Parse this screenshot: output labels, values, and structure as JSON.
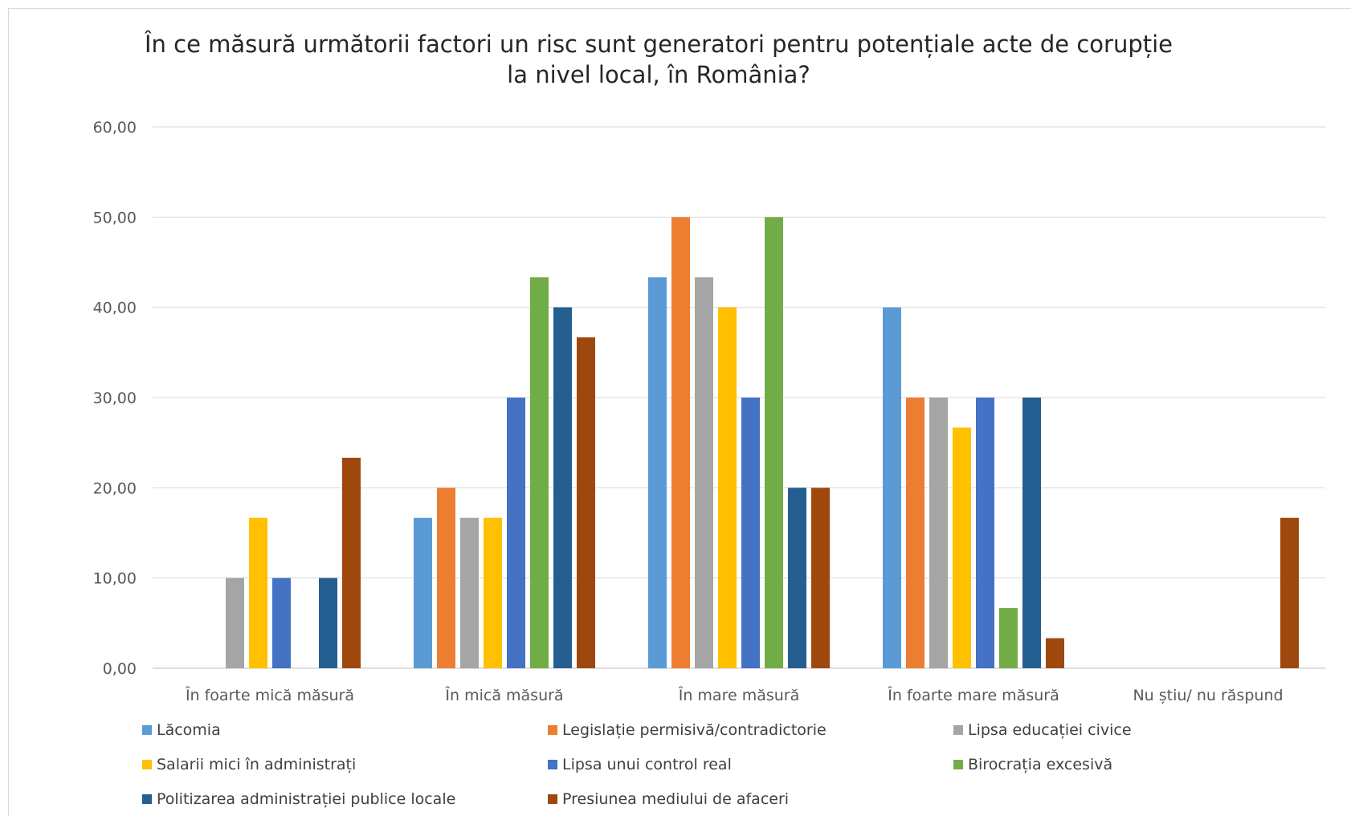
{
  "chart_data": {
    "type": "bar",
    "title_lines": [
      "În ce măsură următorii factori un risc sunt generatori pentru potențiale acte de corupție",
      "la nivel local, în România?"
    ],
    "categories": [
      "În foarte mică măsură",
      "În mică măsură",
      "În mare măsură",
      "În foarte mare măsură",
      "Nu știu/ nu răspund"
    ],
    "ylim": [
      0,
      60
    ],
    "yticks": [
      "0,00",
      "10,00",
      "20,00",
      "30,00",
      "40,00",
      "50,00",
      "60,00"
    ],
    "ytick_values": [
      0,
      10,
      20,
      30,
      40,
      50,
      60
    ],
    "grid": true,
    "legend_position": "bottom",
    "series": [
      {
        "name": "Lăcomia",
        "color": "#5b9bd5",
        "values": [
          0,
          16.67,
          43.33,
          40.0,
          0
        ]
      },
      {
        "name": "Legislație permisivă/contradictorie",
        "color": "#ed7d31",
        "values": [
          0,
          20.0,
          50.0,
          30.0,
          0
        ]
      },
      {
        "name": "Lipsa educației civice",
        "color": "#a5a5a5",
        "values": [
          10.0,
          16.67,
          43.33,
          30.0,
          0
        ]
      },
      {
        "name": "Salarii mici în administrați",
        "color": "#ffc000",
        "values": [
          16.67,
          16.67,
          40.0,
          26.67,
          0
        ]
      },
      {
        "name": "Lipsa unui control real",
        "color": "#4472c4",
        "values": [
          10.0,
          30.0,
          30.0,
          30.0,
          0
        ]
      },
      {
        "name": "Birocrația excesivă",
        "color": "#70ad47",
        "values": [
          0,
          43.33,
          50.0,
          6.67,
          0
        ]
      },
      {
        "name": "Politizarea administrației publice locale",
        "color": "#255e91",
        "values": [
          10.0,
          40.0,
          20.0,
          30.0,
          0
        ]
      },
      {
        "name": "Presiunea mediului de afaceri",
        "color": "#9e480e",
        "values": [
          23.33,
          36.67,
          20.0,
          3.33,
          16.67
        ]
      }
    ]
  }
}
